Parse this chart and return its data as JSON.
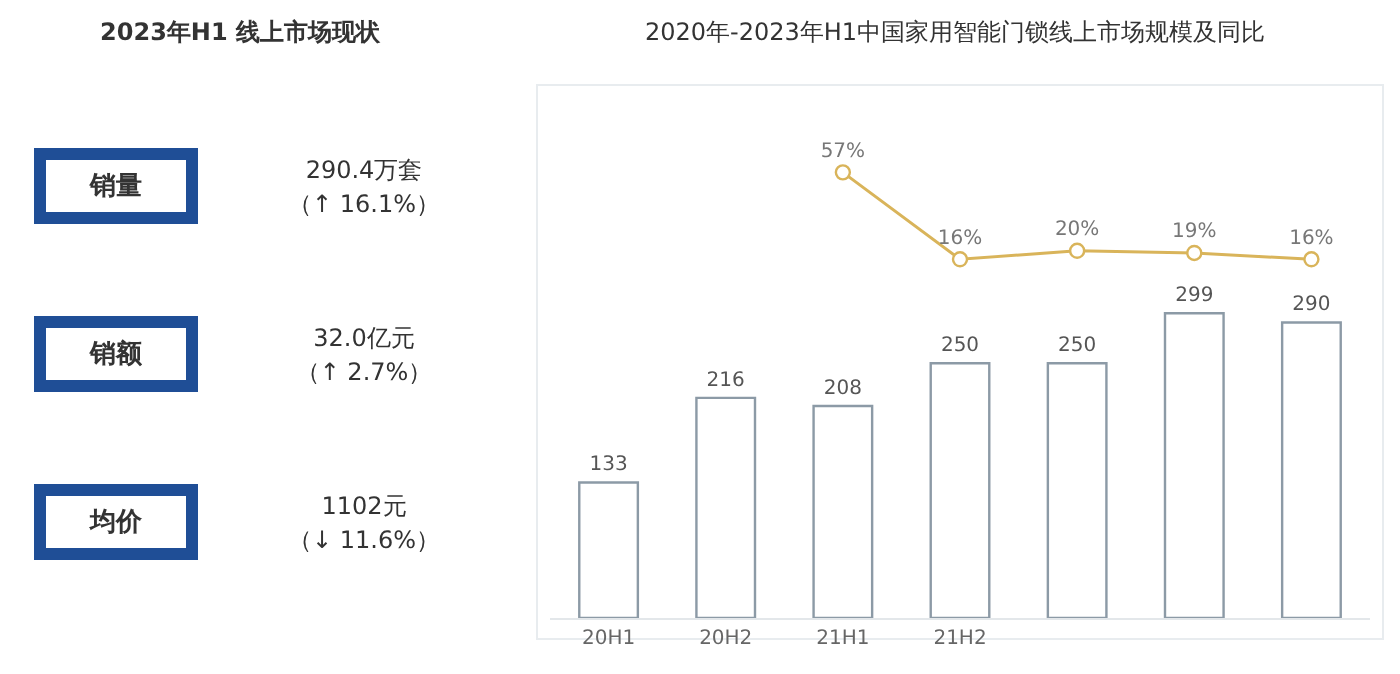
{
  "chart_data": [
    {
      "type": "other",
      "title": "2023年H1 线上市场现状",
      "annotations": [
        "销量",
        "290.4万套",
        "（↑ 16.1%）",
        "销额",
        "32.0亿元",
        "（↑ 2.7%）",
        "均价",
        "1102元",
        "（↓ 11.6%）"
      ]
    },
    {
      "type": "line",
      "title": "2020年-2023年H1中国家用智能门锁线上市场规模及同比",
      "categories": [
        null,
        null,
        null,
        null,
        null,
        null,
        null
      ],
      "series": [
        {
          "type": "line",
          "color": "#d9b45a",
          "values": [
            null,
            null,
            57,
            16,
            20,
            19,
            16
          ],
          "value_labels": [
            null,
            null,
            "57%",
            "16%",
            "20%",
            "19%",
            "16%"
          ]
        }
      ],
      "marker": "circle",
      "line_style": "solid",
      "grid": false,
      "legend": false,
      "tick_labels": false
    },
    {
      "type": "bar",
      "categories": [
        "20H1",
        "20H2",
        "21H1",
        "21H2",
        null,
        null,
        null
      ],
      "series": [
        {
          "type": "bar",
          "color": "#8c9aa6",
          "values": [
            133,
            216,
            208,
            250,
            250,
            299,
            290
          ],
          "value_labels": [
            "133",
            "216",
            "208",
            "250",
            "250",
            "299",
            "290"
          ]
        }
      ],
      "grid": false,
      "legend": false,
      "tick_labels": "x"
    }
  ]
}
